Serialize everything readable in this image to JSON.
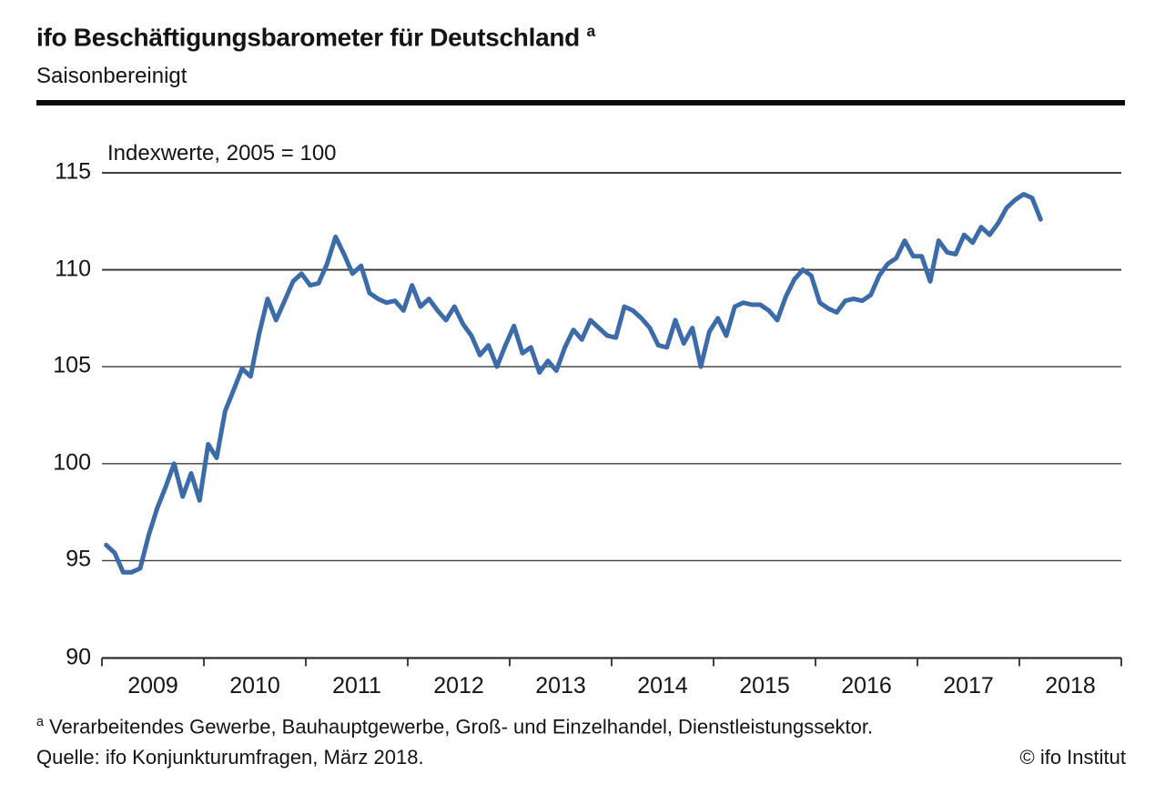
{
  "header": {
    "title": "ifo Beschäftigungsbarometer für Deutschland",
    "title_footnote_marker": "a",
    "subtitle": "Saisonbereinigt"
  },
  "chart_data": {
    "type": "line",
    "annotation": "Indexwerte, 2005 = 100",
    "frequency": "monthly",
    "points_start": "2009-01",
    "points_end": "2018-03",
    "x_axis_year_ticks": [
      2009,
      2010,
      2011,
      2012,
      2013,
      2014,
      2015,
      2016,
      2017,
      2018
    ],
    "xlim_years": [
      2009,
      2019
    ],
    "y_ticks": [
      90,
      95,
      100,
      105,
      110,
      115
    ],
    "ylim": [
      90,
      115
    ],
    "grid": "horizontal",
    "legend_position": "none",
    "series": [
      {
        "name": "ifo Beschäftigungsbarometer",
        "color": "#3b6ba8",
        "values": [
          95.8,
          95.4,
          94.4,
          94.4,
          94.6,
          96.3,
          97.7,
          98.8,
          100.0,
          98.3,
          99.5,
          98.1,
          101.0,
          100.3,
          102.7,
          103.8,
          104.9,
          104.5,
          106.7,
          108.5,
          107.4,
          108.4,
          109.4,
          109.8,
          109.2,
          109.3,
          110.3,
          111.7,
          110.8,
          109.8,
          110.2,
          108.8,
          108.5,
          108.3,
          108.4,
          107.9,
          109.2,
          108.1,
          108.5,
          107.9,
          107.4,
          108.1,
          107.2,
          106.6,
          105.6,
          106.1,
          105.0,
          106.1,
          107.1,
          105.7,
          106.0,
          104.7,
          105.3,
          104.8,
          106.0,
          106.9,
          106.4,
          107.4,
          107.0,
          106.6,
          106.5,
          108.1,
          107.9,
          107.5,
          107.0,
          106.1,
          106.0,
          107.4,
          106.2,
          107.0,
          105.0,
          106.8,
          107.5,
          106.6,
          108.1,
          108.3,
          108.2,
          108.2,
          107.9,
          107.4,
          108.6,
          109.5,
          110.0,
          109.7,
          108.3,
          108.0,
          107.8,
          108.4,
          108.5,
          108.4,
          108.7,
          109.7,
          110.3,
          110.6,
          111.5,
          110.7,
          110.7,
          109.4,
          111.5,
          110.9,
          110.8,
          111.8,
          111.4,
          112.2,
          111.8,
          112.4,
          113.2,
          113.6,
          113.9,
          113.7,
          112.6
        ]
      }
    ],
    "title": "ifo Beschäftigungsbarometer für Deutschland",
    "xlabel": "",
    "ylabel": ""
  },
  "footnote": {
    "marker": "a",
    "text": " Verarbeitendes Gewerbe, Bauhauptgewerbe, Groß- und Einzelhandel, Dienstleistungssektor."
  },
  "source": "Quelle: ifo Konjunkturumfragen, März 2018.",
  "copyright": "© ifo Institut"
}
